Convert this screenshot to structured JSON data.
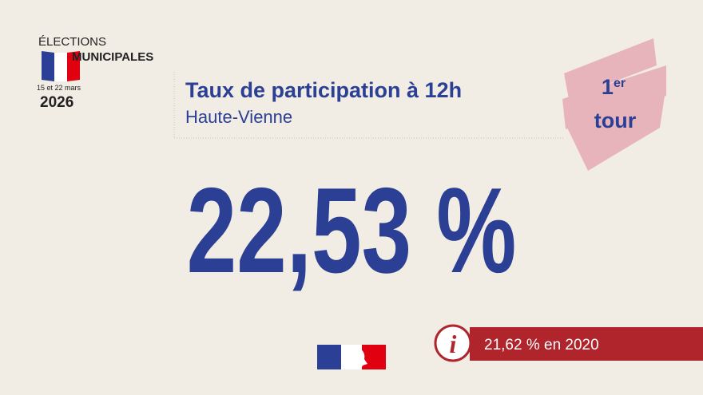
{
  "logo": {
    "line1": "ÉLECTIONS",
    "line2": "MUNICIPALES",
    "dates": "15 et 22 mars",
    "year": "2026"
  },
  "header": {
    "title": "Taux de participation à 12h",
    "subtitle": "Haute-Vienne"
  },
  "badge": {
    "number": "1",
    "suffix": "er",
    "word": "tour"
  },
  "main_value": "22,53 %",
  "info": {
    "text": "21,62 % en 2020"
  }
}
